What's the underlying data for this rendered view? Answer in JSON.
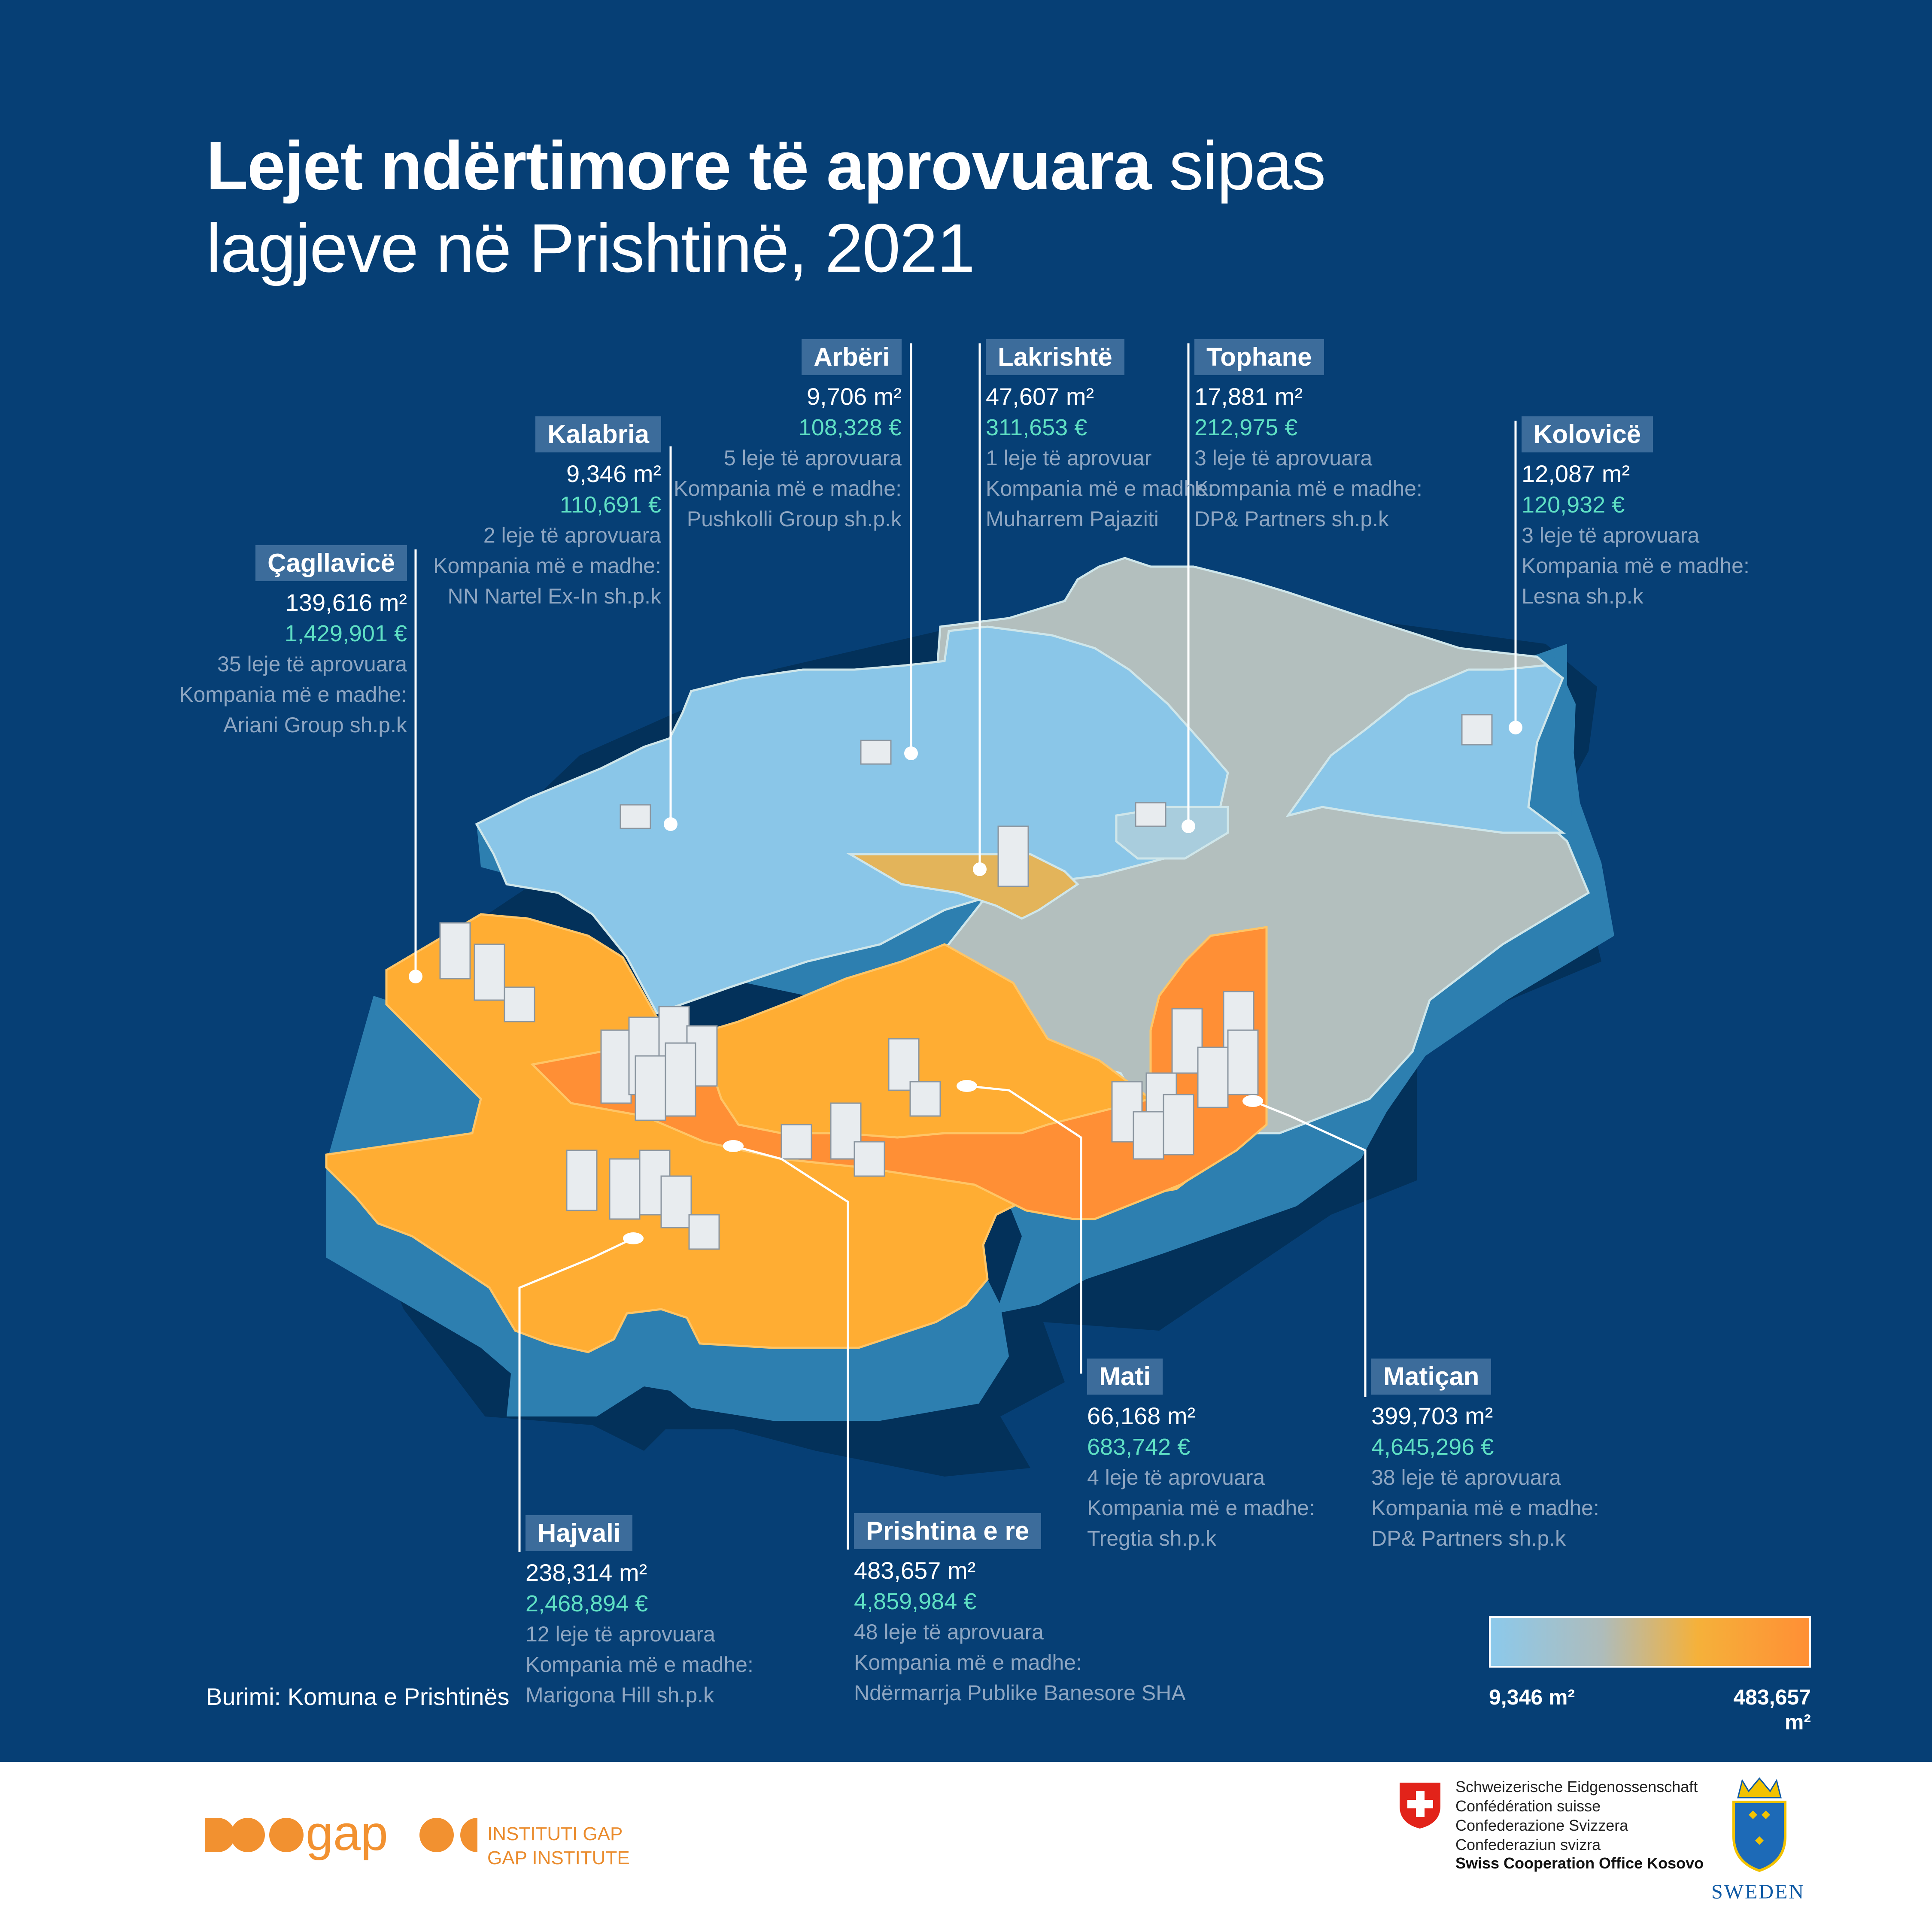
{
  "title": {
    "bold": "Lejet ndërtimore të aprovuara",
    "rest_line1": " sipas",
    "line2": "lagjeve në Prishtinë, 2021"
  },
  "neighborhoods": [
    {
      "id": "caglavice",
      "name": "Çagllavicë",
      "area": "139,616 m²",
      "value": "1,429,901 €",
      "permits": "35 leje të aprovuara",
      "company_label": "Kompania më e madhe:",
      "company": "Ariani Group sh.p.k",
      "color": "#ffad33"
    },
    {
      "id": "kalabria",
      "name": "Kalabria",
      "area": "9,346 m²",
      "value": "110,691 €",
      "permits": "2 leje të aprovuara",
      "company_label": "Kompania më e madhe:",
      "company": "NN Nartel Ex-In sh.p.k",
      "color": "#8ac6e8"
    },
    {
      "id": "arberi",
      "name": "Arbëri",
      "area": "9,706 m²",
      "value": "108,328 €",
      "permits": "5 leje të aprovuara",
      "company_label": "Kompania më e madhe:",
      "company": "Pushkolli Group sh.p.k",
      "color": "#8ac6e8"
    },
    {
      "id": "lakrishte",
      "name": "Lakrishtë",
      "area": "47,607 m²",
      "value": "311,653 €",
      "permits": "1 leje të aprovuar",
      "company_label": "Kompania më e madhe:",
      "company": "Muharrem Pajaziti",
      "color": "#e3b45a"
    },
    {
      "id": "tophane",
      "name": "Tophane",
      "area": "17,881 m²",
      "value": "212,975 €",
      "permits": "3 leje të aprovuara",
      "company_label": "Kompania më e madhe:",
      "company": "DP& Partners sh.p.k",
      "color": "#a9cddd"
    },
    {
      "id": "kolovice",
      "name": "Kolovicë",
      "area": "12,087 m²",
      "value": "120,932 €",
      "permits": "3 leje të aprovuara",
      "company_label": "Kompania më e madhe:",
      "company": "Lesna sh.p.k",
      "color": "#8ac6e8"
    },
    {
      "id": "mati",
      "name": "Mati",
      "area": "66,168 m²",
      "value": "683,742 €",
      "permits": "4 leje të aprovuara",
      "company_label": "Kompania më e madhe:",
      "company": "Tregtia sh.p.k",
      "color": "#ffb233"
    },
    {
      "id": "maticane",
      "name": "Matiçan",
      "area": "399,703 m²",
      "value": "4,645,296 €",
      "permits": "38 leje të aprovuara",
      "company_label": "Kompania më e madhe:",
      "company": "DP& Partners sh.p.k",
      "color": "#ff8f35"
    },
    {
      "id": "prishtina-e-re",
      "name": "Prishtina e re",
      "area": "483,657 m²",
      "value": "4,859,984 €",
      "permits": "48 leje të aprovuara",
      "company_label": "Kompania më e madhe:",
      "company": "Ndërmarrja Publike Banesore SHA",
      "color": "#ff8f35"
    },
    {
      "id": "hajvali",
      "name": "Hajvali",
      "area": "238,314 m²",
      "value": "2,468,894 €",
      "permits": "12 leje të aprovuara",
      "company_label": "Kompania më e madhe:",
      "company": "Marigona Hill sh.p.k",
      "color": "#ffa336"
    }
  ],
  "source": "Burimi: Komuna e Prishtinës",
  "legend": {
    "min": "9,346 m²",
    "max": "483,657 m²",
    "colors": [
      "#8cc9eb",
      "#aebcbb",
      "#f5b13a",
      "#ff8f35"
    ]
  },
  "footer": {
    "gap_line1": "INSTITUTI GAP",
    "gap_line2": "GAP INSTITUTE",
    "swiss_lines": [
      "Schweizerische Eidgenossenschaft",
      "Confédération suisse",
      "Confederazione Svizzera",
      "Confederaziun svizra"
    ],
    "swiss_office": "Swiss Cooperation Office Kosovo",
    "sweden": "SWEDEN"
  },
  "colors": {
    "background": "#063f75",
    "map_side": "#2d7fb0",
    "grey_area": "#b3bfbe",
    "light_blue": "#8ac6e8",
    "orange": "#ffad33",
    "dark_orange": "#ff8f35",
    "teal_value": "#5fe0c4"
  }
}
